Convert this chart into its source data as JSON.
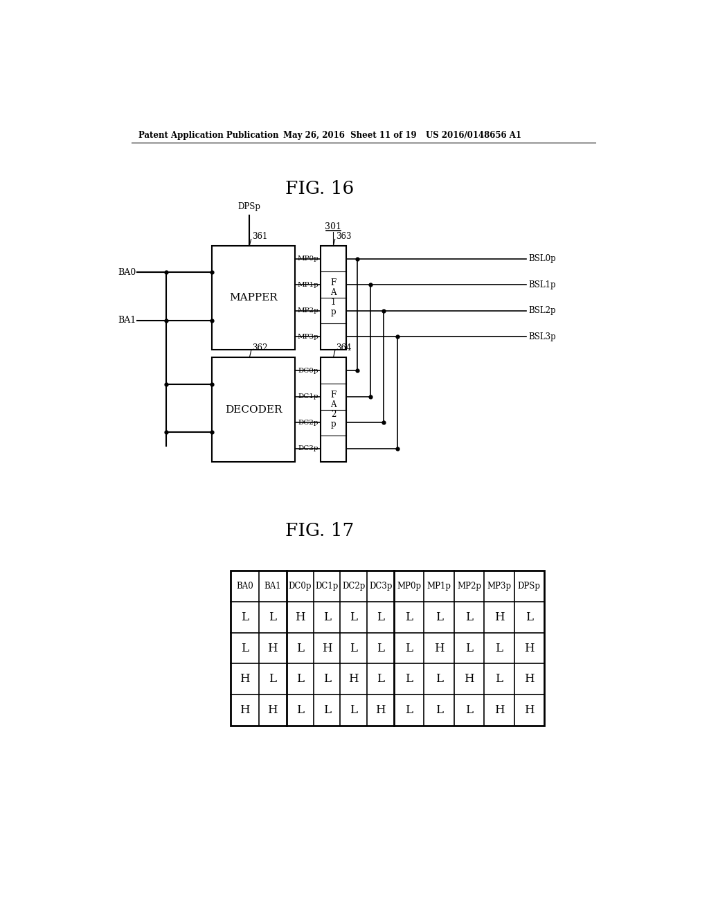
{
  "bg_color": "#ffffff",
  "header_text": "Patent Application Publication",
  "header_date": "May 26, 2016  Sheet 11 of 19",
  "header_patent": "US 2016/0148656 A1",
  "fig16_title": "FIG. 16",
  "fig17_title": "FIG. 17",
  "block301_label": "301",
  "mapper_label": "MAPPER",
  "mapper_num": "361",
  "decoder_label": "DECODER",
  "decoder_num": "362",
  "fa1_label": "F\nA\n1\np",
  "fa1_num": "363",
  "fa2_label": "F\nA\n2\np",
  "fa2_num": "364",
  "mapper_input_left0": "BA0",
  "mapper_input_left1": "BA1",
  "mapper_input_top": "DPSp",
  "mapper_outputs": [
    "MP0p",
    "MP1p",
    "MP2p",
    "MP3p"
  ],
  "decoder_outputs": [
    "DC0p",
    "DC1p",
    "DC2p",
    "DC3p"
  ],
  "bsl_outputs": [
    "BSL0p",
    "BSL1p",
    "BSL2p",
    "BSL3p"
  ],
  "table_headers": [
    "BA0",
    "BA1",
    "DC0p",
    "DC1p",
    "DC2p",
    "DC3p",
    "MP0p",
    "MP1p",
    "MP2p",
    "MP3p",
    "DPSp"
  ],
  "table_rows": [
    [
      "L",
      "L",
      "H",
      "L",
      "L",
      "L",
      "L",
      "L",
      "L",
      "H",
      "L"
    ],
    [
      "L",
      "H",
      "L",
      "H",
      "L",
      "L",
      "L",
      "H",
      "L",
      "L",
      "H"
    ],
    [
      "H",
      "L",
      "L",
      "L",
      "H",
      "L",
      "L",
      "L",
      "H",
      "L",
      "H"
    ],
    [
      "H",
      "H",
      "L",
      "L",
      "L",
      "H",
      "L",
      "L",
      "L",
      "H",
      "H"
    ]
  ]
}
